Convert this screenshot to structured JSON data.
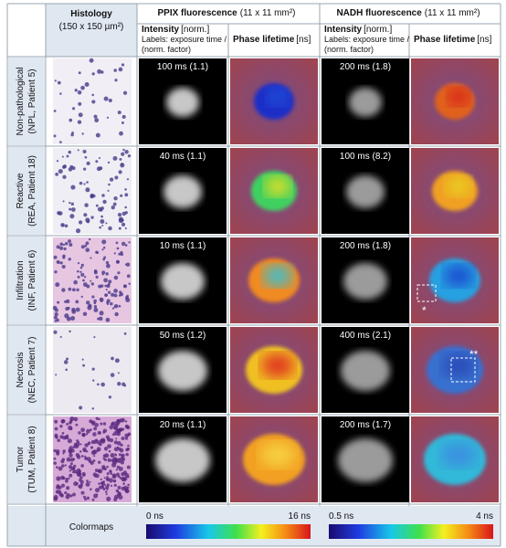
{
  "header": {
    "histology": {
      "title": "Histology",
      "subtitle": "(150 x 150 µm²)"
    },
    "groups": [
      {
        "title": "PPIX fluorescence",
        "unit": "(11 x 11 mm²)"
      },
      {
        "title": "NADH fluorescence",
        "unit": "(11 x 11 mm²)"
      }
    ],
    "columns": [
      {
        "title": "Intensity",
        "unit": "[norm.]",
        "note": "Labels: exposure time /",
        "note2": "(norm. factor)"
      },
      {
        "title": "Phase lifetime",
        "unit": "[ns]"
      }
    ]
  },
  "rows": [
    {
      "label": "Non-pathological",
      "sublabel": "(NPL, Patient 5)",
      "ppix": "100 ms (1.1)",
      "nadh": "200 ms (1.8)"
    },
    {
      "label": "Reactive",
      "sublabel": "(REA, Patient 18)",
      "ppix": "40 ms (1.1)",
      "nadh": "100 ms (8.2)"
    },
    {
      "label": "Infiltration",
      "sublabel": "(INF, Patient 6)",
      "ppix": "10 ms (1.1)",
      "nadh": "200 ms (1.8)"
    },
    {
      "label": "Necrosis",
      "sublabel": "(NEC, Patient 7)",
      "ppix": "50 ms (1.2)",
      "nadh": "400 ms (2.1)"
    },
    {
      "label": "Tumor",
      "sublabel": "(TUM, Patient 8)",
      "ppix": "20 ms (1.1)",
      "nadh": "200 ms (1.7)"
    }
  ],
  "annotations": [
    "*",
    "**"
  ],
  "colormaps": {
    "label": "Colormaps",
    "ppix": {
      "min": "0 ns",
      "max": "16 ns"
    },
    "nadh": {
      "min": "0.5 ns",
      "max": "4 ns"
    }
  }
}
